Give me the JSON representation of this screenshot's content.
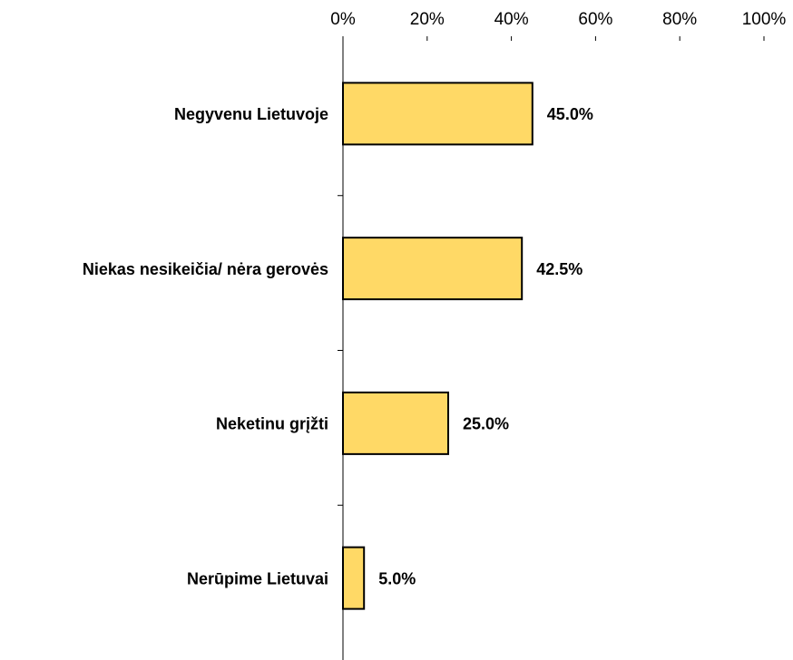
{
  "chart_data": {
    "type": "bar",
    "orientation": "horizontal",
    "categories": [
      "Negyvenu Lietuvoje",
      "Niekas nesikeičia/ nėra gerovės",
      "Neketinu grįžti",
      "Nerūpime Lietuvai"
    ],
    "values": [
      45.0,
      42.5,
      25.0,
      5.0
    ],
    "value_labels": [
      "45.0%",
      "42.5%",
      "25.0%",
      "5.0%"
    ],
    "color": "#ffd966",
    "xlim": [
      0,
      100
    ],
    "xticks": [
      {
        "value": 0,
        "label": "0%"
      },
      {
        "value": 20,
        "label": "20%"
      },
      {
        "value": 40,
        "label": "40%"
      },
      {
        "value": 60,
        "label": "60%"
      },
      {
        "value": 80,
        "label": "80%"
      },
      {
        "value": 100,
        "label": "100%"
      }
    ],
    "grid": false
  }
}
